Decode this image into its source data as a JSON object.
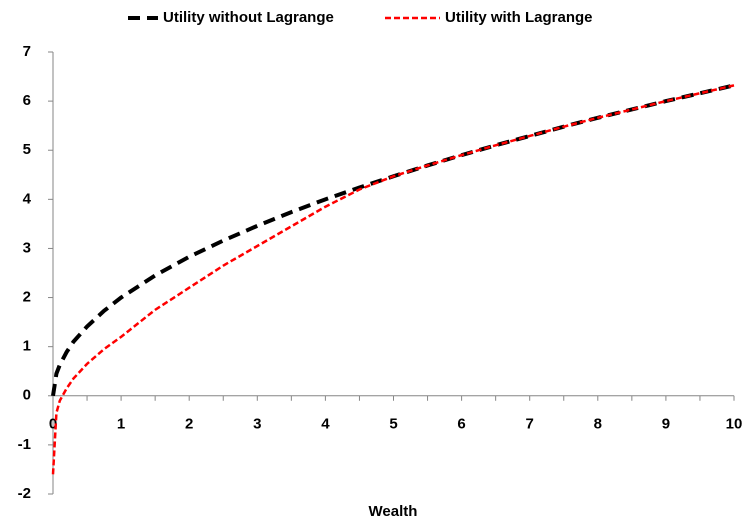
{
  "chart_data": {
    "type": "line",
    "x_label": "Wealth",
    "x": [
      0,
      0.05,
      0.1,
      0.2,
      0.3,
      0.5,
      0.75,
      1,
      1.5,
      2,
      2.5,
      3,
      3.5,
      4,
      4.5,
      5,
      5.5,
      6,
      6.5,
      7,
      7.5,
      8,
      8.5,
      9,
      9.5,
      10
    ],
    "series": [
      {
        "name": "Utility without Lagrange",
        "color": "#000000",
        "dash": "12,7",
        "width": 4,
        "values": [
          0,
          0.45,
          0.63,
          0.89,
          1.1,
          1.41,
          1.73,
          2,
          2.45,
          2.83,
          3.16,
          3.46,
          3.74,
          4,
          4.24,
          4.47,
          4.69,
          4.9,
          5.1,
          5.29,
          5.48,
          5.66,
          5.83,
          6,
          6.16,
          6.32
        ]
      },
      {
        "name": "Utility with Lagrange",
        "color": "#ff0000",
        "dash": "6,3",
        "width": 2.5,
        "values": [
          -1.6,
          -0.35,
          -0.1,
          0.15,
          0.35,
          0.65,
          0.95,
          1.2,
          1.75,
          2.2,
          2.65,
          3.05,
          3.45,
          3.85,
          4.2,
          4.47,
          4.69,
          4.9,
          5.1,
          5.29,
          5.48,
          5.66,
          5.83,
          6,
          6.16,
          6.32
        ]
      }
    ],
    "xlim": [
      0,
      10
    ],
    "xticks": [
      0,
      1,
      2,
      3,
      4,
      5,
      6,
      7,
      8,
      9,
      10
    ],
    "ylim": [
      -2,
      7
    ],
    "yticks": [
      -2,
      -1,
      0,
      1,
      2,
      3,
      4,
      5,
      6,
      7
    ],
    "legend": "top",
    "grid": false
  }
}
